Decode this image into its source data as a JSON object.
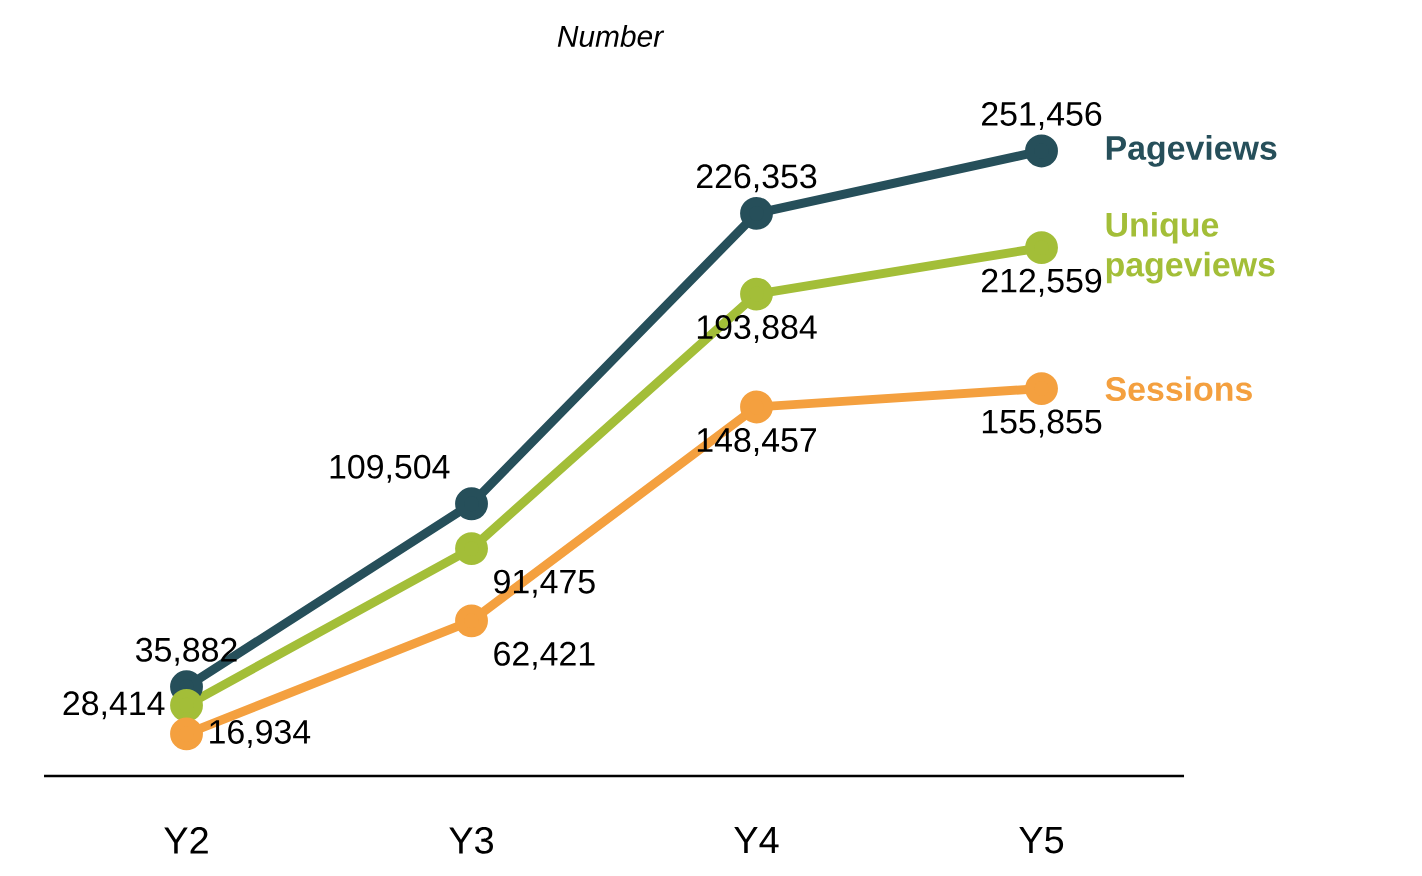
{
  "chart_data": {
    "type": "line",
    "subtitle": "Number",
    "categories": [
      "Y2",
      "Y3",
      "Y4",
      "Y5"
    ],
    "series": [
      {
        "name": "Pageviews",
        "color": "#264f5a",
        "values": [
          35882,
          109504,
          226353,
          251456
        ],
        "value_labels": [
          "35,882",
          "109,504",
          "226,353",
          "251,456"
        ]
      },
      {
        "name": "Unique pageviews",
        "color": "#a3be38",
        "values": [
          28414,
          91475,
          193884,
          212559
        ],
        "value_labels": [
          "28,414",
          "91,475",
          "193,884",
          "212,559"
        ]
      },
      {
        "name": "Sessions",
        "color": "#f4a03f",
        "values": [
          16934,
          62421,
          148457,
          155855
        ],
        "value_labels": [
          "16,934",
          "62,421",
          "148,457",
          "155,855"
        ]
      }
    ],
    "marker": "circle",
    "line_style": "solid"
  }
}
